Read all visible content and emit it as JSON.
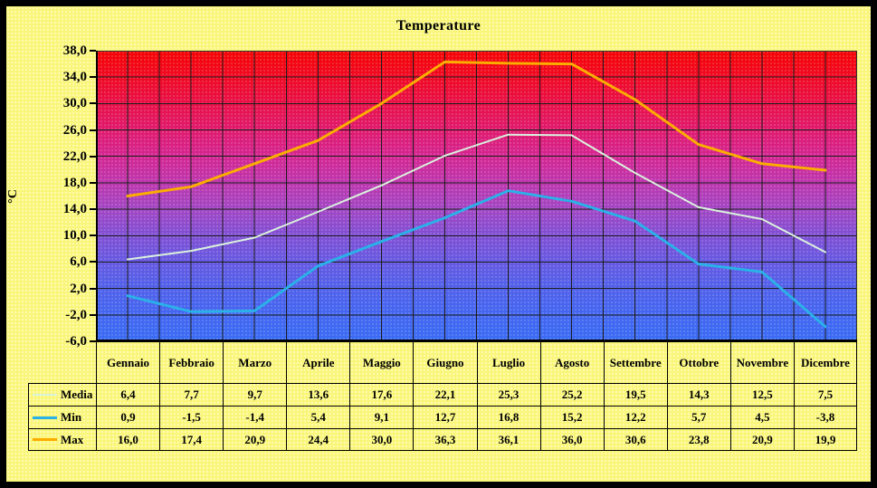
{
  "window": {
    "frame_color": "#000000",
    "page_background": "#f9f67b"
  },
  "chart_data": {
    "type": "line",
    "title": "Temperature",
    "ylabel": "°C",
    "categories": [
      "Gennaio",
      "Febbraio",
      "Marzo",
      "Aprile",
      "Maggio",
      "Giugno",
      "Luglio",
      "Agosto",
      "Settembre",
      "Ottobre",
      "Novembre",
      "Dicembre"
    ],
    "series": [
      {
        "name": "Media",
        "color": "#d9f2dc",
        "stroke_width": 2,
        "values": [
          6.4,
          7.7,
          9.7,
          13.6,
          17.6,
          22.1,
          25.3,
          25.2,
          19.5,
          14.3,
          12.5,
          7.5
        ]
      },
      {
        "name": "Min",
        "color": "#2bb0e8",
        "stroke_width": 3,
        "values": [
          0.9,
          -1.5,
          -1.4,
          5.4,
          9.1,
          12.7,
          16.8,
          15.2,
          12.2,
          5.7,
          4.5,
          -3.8
        ]
      },
      {
        "name": "Max",
        "color": "#fbad00",
        "stroke_width": 3,
        "values": [
          16.0,
          17.4,
          20.9,
          24.4,
          30.0,
          36.3,
          36.1,
          36.0,
          30.6,
          23.8,
          20.9,
          19.9
        ]
      }
    ],
    "ylim": [
      -6,
      38
    ],
    "ytick_step": 4,
    "y_ticks": [
      38,
      34,
      30,
      26,
      22,
      18,
      14,
      10,
      6,
      2,
      -2,
      -6
    ],
    "decimal_separator": ",",
    "grid": true,
    "x_gridlines_per_category": 2,
    "gridline_color": "#1c1c1c",
    "axis_color": "#000000",
    "legend_position": "data-table-left",
    "plot_background_gradient": [
      "#f50404",
      "#ef0a24",
      "#e81148",
      "#e01a6e",
      "#d42692",
      "#bd37ae",
      "#a246c4",
      "#8050d4",
      "#6659e2",
      "#5161ea",
      "#4366f0",
      "#3a6cf4"
    ]
  }
}
